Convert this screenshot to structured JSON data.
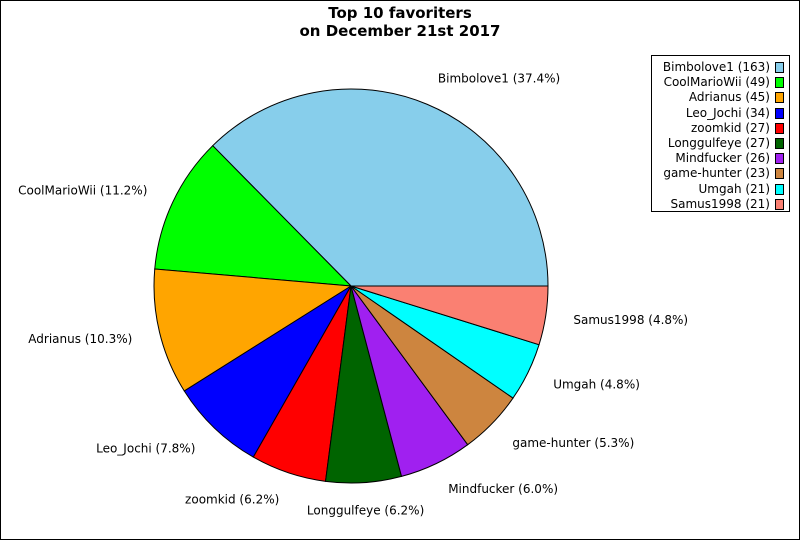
{
  "chart_data": {
    "type": "pie",
    "title": [
      "Top 10 favoriters",
      "on December 21st 2017"
    ],
    "slices": [
      {
        "name": "Bimbolove1",
        "value": 163,
        "percent_label": "37.4%",
        "color": "#87ceeb"
      },
      {
        "name": "CoolMarioWii",
        "value": 49,
        "percent_label": "11.2%",
        "color": "#00ff00"
      },
      {
        "name": "Adrianus",
        "value": 45,
        "percent_label": "10.3%",
        "color": "#ffa500"
      },
      {
        "name": "Leo_Jochi",
        "value": 34,
        "percent_label": "7.8%",
        "color": "#0000ff"
      },
      {
        "name": "zoomkid",
        "value": 27,
        "percent_label": "6.2%",
        "color": "#ff0000"
      },
      {
        "name": "Longgulfeye",
        "value": 27,
        "percent_label": "6.2%",
        "color": "#006400"
      },
      {
        "name": "Mindfucker",
        "value": 26,
        "percent_label": "6.0%",
        "color": "#a020f0"
      },
      {
        "name": "game-hunter",
        "value": 23,
        "percent_label": "5.3%",
        "color": "#cd853f"
      },
      {
        "name": "Umgah",
        "value": 21,
        "percent_label": "4.8%",
        "color": "#00ffff"
      },
      {
        "name": "Samus1998",
        "value": 21,
        "percent_label": "4.8%",
        "color": "#fa8072"
      }
    ],
    "start": "3 o'clock",
    "direction": "counterclockwise",
    "legend_position": "top-right",
    "legend_entries": [
      "Bimbolove1 (163)",
      "CoolMarioWii (49)",
      "Adrianus (45)",
      "Leo_Jochi (34)",
      "zoomkid (27)",
      "Longgulfeye (27)",
      "Mindfucker (26)",
      "game-hunter (23)",
      "Umgah (21)",
      "Samus1998 (21)"
    ]
  }
}
